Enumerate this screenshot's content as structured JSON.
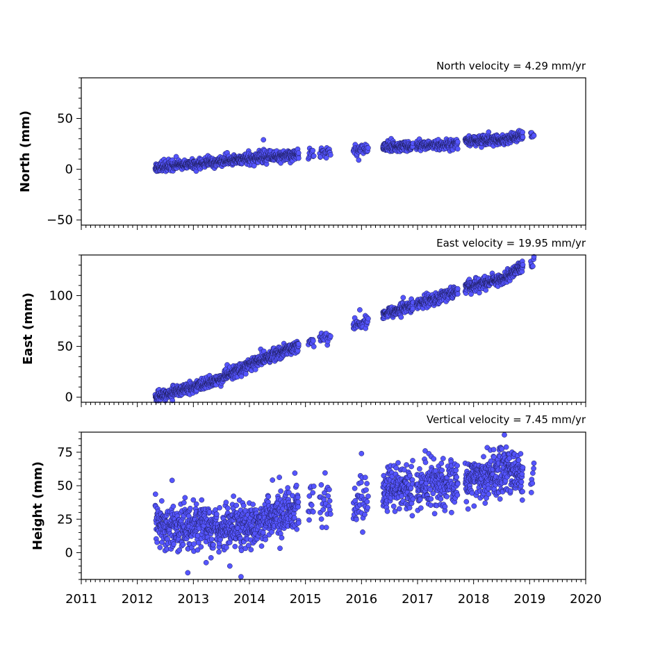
{
  "chart_data": {
    "type": "scatter",
    "x_axis": {
      "ticks": [
        2011,
        2012,
        2013,
        2014,
        2015,
        2016,
        2017,
        2018,
        2019,
        2020
      ],
      "xlim": [
        2011,
        2020
      ]
    },
    "colors": {
      "marker_fill": "#5555ff",
      "marker_edge": "#1a1a55"
    },
    "panels": [
      {
        "title": "North velocity = 4.29 mm/yr",
        "ylabel": "North (mm)",
        "ylim": [
          -55,
          90
        ],
        "yticks": [
          -50,
          0,
          50
        ],
        "velocity": 4.29,
        "trend": [
          [
            2012.32,
            2.0
          ],
          [
            2013.0,
            5.0
          ],
          [
            2014.0,
            10.5
          ],
          [
            2014.8,
            14.0
          ],
          [
            2015.1,
            15.5
          ],
          [
            2015.4,
            16.5
          ],
          [
            2015.85,
            19.0
          ],
          [
            2016.1,
            19.5
          ],
          [
            2016.4,
            22.0
          ],
          [
            2017.0,
            23.5
          ],
          [
            2017.7,
            24.5
          ],
          [
            2017.85,
            28.5
          ],
          [
            2018.5,
            29.0
          ],
          [
            2018.85,
            33.0
          ],
          [
            2019.05,
            33.5
          ]
        ],
        "outliers": [
          [
            2014.25,
            29
          ],
          [
            2015.95,
            9
          ]
        ],
        "noise_sd": 2.5
      },
      {
        "title": "East velocity = 19.95 mm/yr",
        "ylabel": "East (mm)",
        "ylim": [
          -5,
          140
        ],
        "yticks": [
          0,
          50,
          100
        ],
        "velocity": 19.95,
        "trend": [
          [
            2012.32,
            0.0
          ],
          [
            2013.0,
            10.0
          ],
          [
            2013.5,
            18.0
          ],
          [
            2014.0,
            32.0
          ],
          [
            2014.4,
            41.0
          ],
          [
            2014.8,
            49.0
          ],
          [
            2015.1,
            55.0
          ],
          [
            2015.4,
            60.0
          ],
          [
            2015.85,
            70.0
          ],
          [
            2016.1,
            75.0
          ],
          [
            2016.4,
            82.0
          ],
          [
            2016.9,
            90.0
          ],
          [
            2017.7,
            104.0
          ],
          [
            2017.85,
            108.0
          ],
          [
            2018.5,
            116.0
          ],
          [
            2018.85,
            128.0
          ],
          [
            2019.05,
            134.0
          ]
        ],
        "outliers": [
          [
            2015.97,
            86
          ]
        ],
        "noise_sd": 2.8
      },
      {
        "title": "Vertical velocity = 7.45 mm/yr",
        "ylabel": "Height (mm)",
        "ylim": [
          -20,
          90
        ],
        "yticks": [
          0,
          25,
          50,
          75
        ],
        "velocity": 7.45,
        "trend": [
          [
            2012.32,
            20.0
          ],
          [
            2013.0,
            19.0
          ],
          [
            2014.0,
            20.0
          ],
          [
            2014.5,
            28.0
          ],
          [
            2014.8,
            33.0
          ],
          [
            2015.1,
            35.0
          ],
          [
            2015.4,
            37.0
          ],
          [
            2015.85,
            38.0
          ],
          [
            2016.1,
            40.0
          ],
          [
            2016.4,
            47.0
          ],
          [
            2016.9,
            48.0
          ],
          [
            2017.7,
            52.0
          ],
          [
            2017.85,
            55.0
          ],
          [
            2018.5,
            61.0
          ],
          [
            2018.85,
            59.0
          ],
          [
            2019.05,
            58.0
          ]
        ],
        "outliers": [
          [
            2012.9,
            -15
          ],
          [
            2013.65,
            -10
          ],
          [
            2013.85,
            -18
          ],
          [
            2016.0,
            74
          ],
          [
            2018.55,
            88
          ],
          [
            2012.62,
            54
          ]
        ],
        "noise_sd": 8.5
      }
    ],
    "observation_periods": [
      {
        "start": 2012.32,
        "end": 2014.88,
        "per_year": 300
      },
      {
        "start": 2015.05,
        "end": 2015.15,
        "per_year": 120
      },
      {
        "start": 2015.25,
        "end": 2015.45,
        "per_year": 120
      },
      {
        "start": 2015.85,
        "end": 2016.12,
        "per_year": 150
      },
      {
        "start": 2016.38,
        "end": 2016.92,
        "per_year": 300
      },
      {
        "start": 2016.98,
        "end": 2017.72,
        "per_year": 260
      },
      {
        "start": 2017.85,
        "end": 2018.88,
        "per_year": 320
      },
      {
        "start": 2019.02,
        "end": 2019.08,
        "per_year": 120
      }
    ]
  }
}
